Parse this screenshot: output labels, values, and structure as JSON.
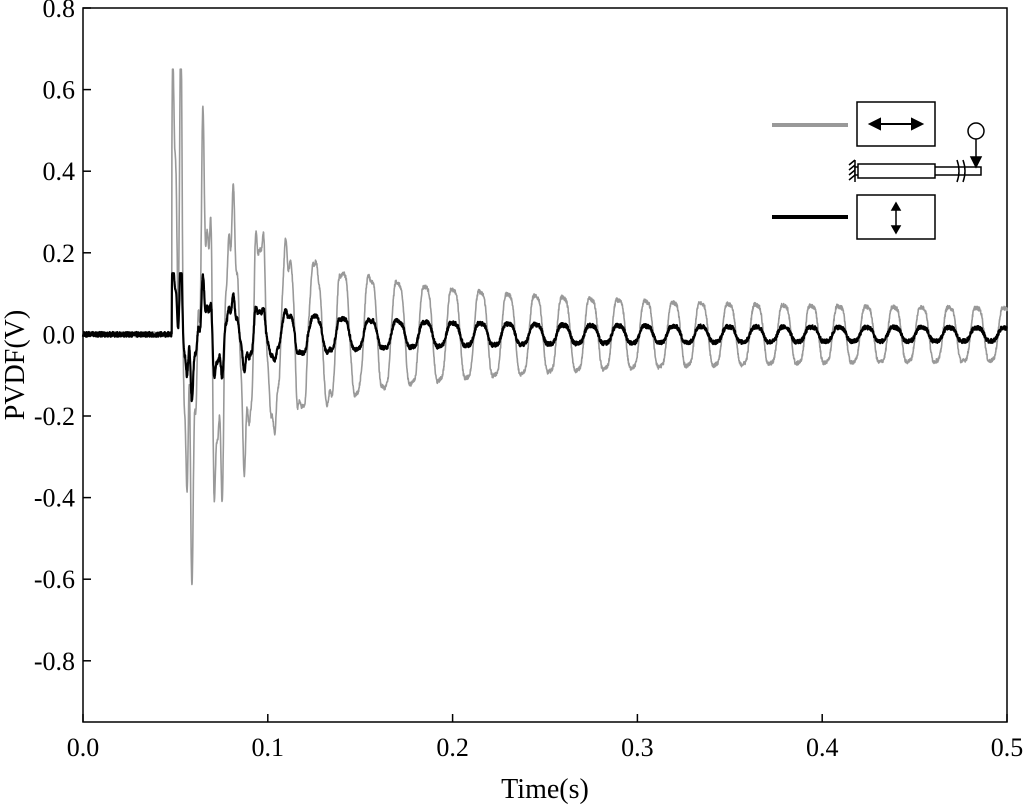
{
  "chart_data": {
    "type": "line",
    "xlabel": "Time(s)",
    "ylabel": "PVDF(V)",
    "xlim": [
      0.0,
      0.5
    ],
    "ylim": [
      -0.95,
      0.8
    ],
    "xticks": [
      0.0,
      0.1,
      0.2,
      0.3,
      0.4,
      0.5
    ],
    "xtick_labels": [
      "0.0",
      "0.1",
      "0.2",
      "0.3",
      "0.4",
      "0.5"
    ],
    "yticks": [
      0.8,
      0.6,
      0.4,
      0.2,
      0.0,
      -0.2,
      -0.4,
      -0.6,
      -0.8
    ],
    "ytick_labels": [
      "0.8",
      "0.6",
      "0.4",
      "0.2",
      "0.0",
      "-0.2",
      "-0.4",
      "-0.6",
      "-0.8"
    ],
    "grid": false,
    "legend_placement": "top-right",
    "series": [
      {
        "color": "#999999",
        "legend_glyph": "horizontal-double-arrow",
        "onset_time": 0.048,
        "peak_max": 0.65,
        "peak_min": -0.76,
        "dominant_frequency_hz": 67,
        "steady_amplitude_at_0_5s": 0.08,
        "sample_peaks": [
          {
            "x": 0.051,
            "y": -0.76
          },
          {
            "x": 0.055,
            "y": 0.65
          },
          {
            "x": 0.063,
            "y": -0.55
          },
          {
            "x": 0.07,
            "y": 0.52
          },
          {
            "x": 0.085,
            "y": 0.35
          },
          {
            "x": 0.1,
            "y": 0.32
          },
          {
            "x": 0.15,
            "y": 0.2
          },
          {
            "x": 0.2,
            "y": 0.15
          },
          {
            "x": 0.3,
            "y": 0.11
          },
          {
            "x": 0.4,
            "y": 0.09
          },
          {
            "x": 0.5,
            "y": 0.08
          }
        ]
      },
      {
        "color": "#000000",
        "legend_glyph": "vertical-double-arrow",
        "onset_time": 0.048,
        "peak_max": 0.15,
        "peak_min": -0.2,
        "dominant_frequency_hz": 67,
        "steady_amplitude_at_0_5s": 0.02,
        "sample_peaks": [
          {
            "x": 0.051,
            "y": -0.2
          },
          {
            "x": 0.057,
            "y": 0.15
          },
          {
            "x": 0.1,
            "y": 0.07
          },
          {
            "x": 0.15,
            "y": 0.05
          },
          {
            "x": 0.2,
            "y": 0.035
          },
          {
            "x": 0.3,
            "y": 0.03
          },
          {
            "x": 0.4,
            "y": 0.025
          },
          {
            "x": 0.5,
            "y": 0.02
          }
        ]
      }
    ]
  }
}
